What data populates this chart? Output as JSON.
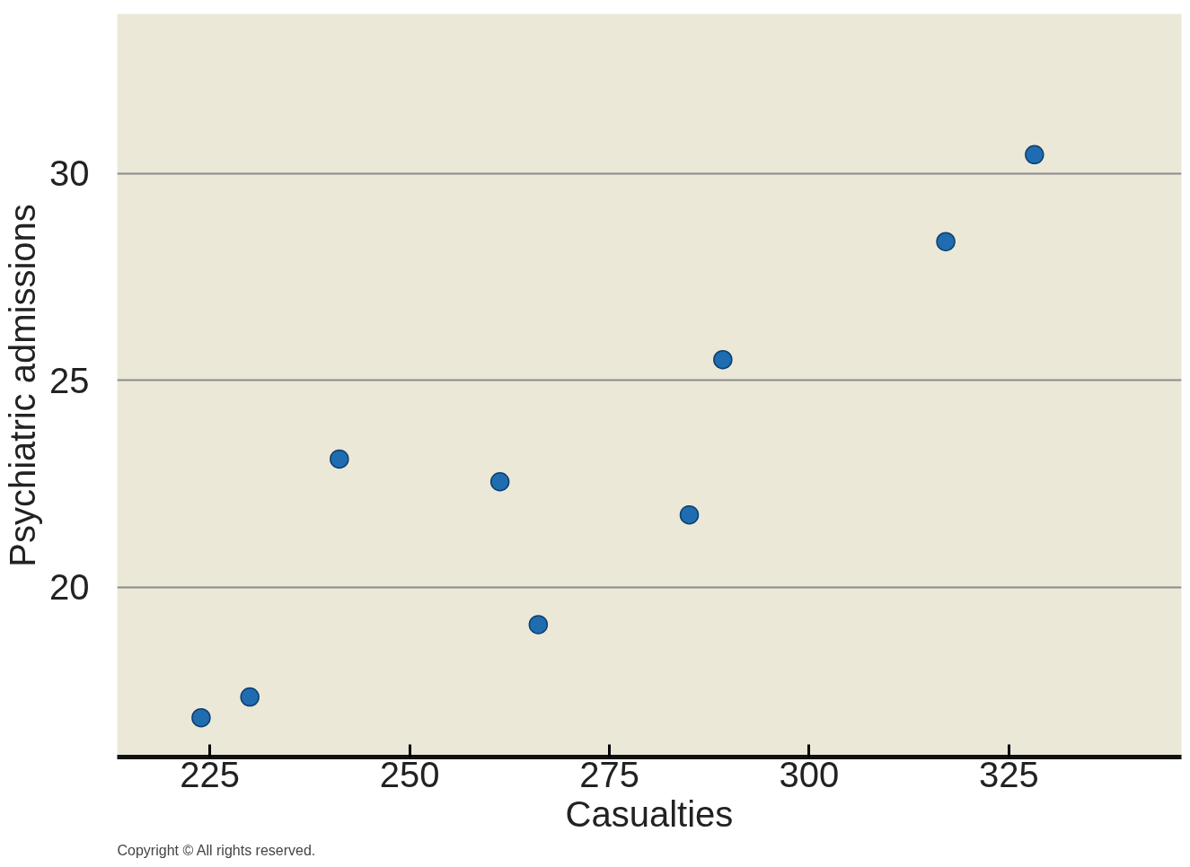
{
  "chart_data": {
    "type": "scatter",
    "xlabel": "Casualties",
    "ylabel": "Psychiatric admissions",
    "x": [
      223.9,
      230,
      241.2,
      261.3,
      266.1,
      285,
      289.2,
      317.1,
      328.2
    ],
    "values": [
      16.85,
      17.35,
      23.1,
      22.55,
      19.1,
      21.75,
      25.5,
      28.35,
      30.45
    ],
    "color": "#1f6db0",
    "marker": "circle",
    "grid": "y",
    "xlim": [
      213.4,
      346.6
    ],
    "ylim": [
      15.9,
      33.85
    ],
    "xticks": [
      225,
      250,
      275,
      300,
      325
    ],
    "yticks": [
      20,
      25,
      30
    ],
    "annotations": [
      "Copyright © All rights reserved."
    ]
  }
}
